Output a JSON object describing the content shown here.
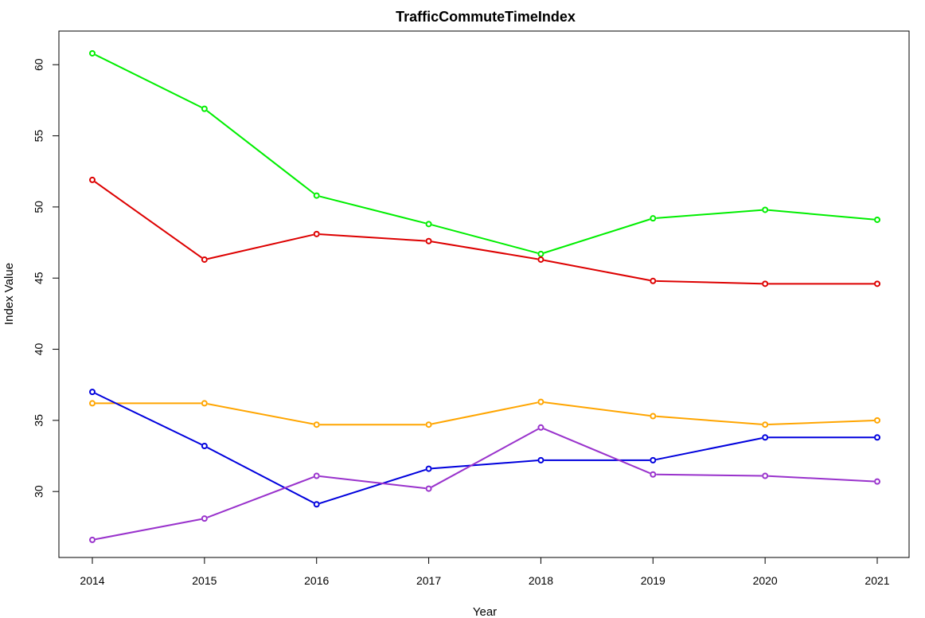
{
  "chart_data": {
    "type": "line",
    "title": "TrafficCommuteTimeIndex",
    "xlabel": "Year",
    "ylabel": "Index Value",
    "x": [
      2014,
      2015,
      2016,
      2017,
      2018,
      2019,
      2020,
      2021
    ],
    "x_tick_labels": [
      "2014",
      "2015",
      "2016",
      "2017",
      "2018",
      "2019",
      "2020",
      "2021"
    ],
    "y_ticks": [
      30,
      35,
      40,
      45,
      50,
      55,
      60
    ],
    "y_tick_labels": [
      "30",
      "35",
      "40",
      "45",
      "50",
      "55",
      "60"
    ],
    "ylim": [
      25,
      62
    ],
    "grid": false,
    "legend": "none",
    "series": [
      {
        "color": "#00ee00",
        "values": [
          60.8,
          56.9,
          50.8,
          48.8,
          46.7,
          49.2,
          49.8,
          49.1
        ]
      },
      {
        "color": "#dd0000",
        "values": [
          51.9,
          46.3,
          48.1,
          47.6,
          46.3,
          44.8,
          44.6,
          44.6
        ]
      },
      {
        "color": "#ffa500",
        "values": [
          36.2,
          36.2,
          34.7,
          34.7,
          36.3,
          35.3,
          34.7,
          35.0
        ]
      },
      {
        "color": "#0000dd",
        "values": [
          37.0,
          33.2,
          29.1,
          31.6,
          32.2,
          32.2,
          33.8,
          33.8
        ]
      },
      {
        "color": "#9932cc",
        "values": [
          26.6,
          28.1,
          31.1,
          30.2,
          34.5,
          31.2,
          31.1,
          30.7
        ]
      }
    ]
  }
}
